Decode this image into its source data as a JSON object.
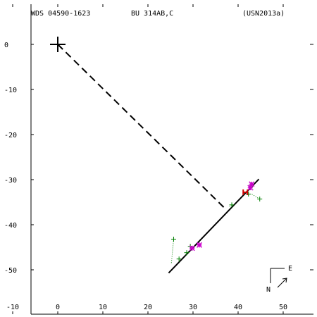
{
  "header": {
    "wds_id": "WDS 04590-1623",
    "discoverer": "BU  314AB,C",
    "reference": "(USN2013a)"
  },
  "compass": {
    "east_label": "E",
    "north_label": "N"
  },
  "colors": {
    "observation": "#008000",
    "highlight": "#cc00cc",
    "predicted": "#cc0000",
    "line": "#000000"
  },
  "chart_data": {
    "type": "scatter",
    "title": "",
    "xlabel": "",
    "ylabel": "",
    "xlim": [
      -10,
      55
    ],
    "ylim": [
      -55,
      10
    ],
    "x_ticks": [
      -10,
      0,
      10,
      20,
      30,
      40,
      50
    ],
    "y_ticks": [
      0,
      -10,
      -20,
      -30,
      -40,
      -50
    ],
    "grid": false,
    "primary": {
      "x": 0,
      "y": 0
    },
    "orbit_line": {
      "from": [
        24.6,
        -50.7
      ],
      "to": [
        44.6,
        -29.9
      ]
    },
    "connector": {
      "from": [
        0,
        0
      ],
      "to": [
        37.3,
        -36.6
      ]
    },
    "observations": [
      {
        "x": 25.7,
        "y": -43.2
      },
      {
        "x": 26.9,
        "y": -47.6
      },
      {
        "x": 28.6,
        "y": -46.2
      },
      {
        "x": 29.4,
        "y": -44.8
      },
      {
        "x": 38.6,
        "y": -35.6
      },
      {
        "x": 42.3,
        "y": -33.2
      },
      {
        "x": 43.0,
        "y": -31.3
      },
      {
        "x": 44.8,
        "y": -34.3
      }
    ],
    "residual_lines": [
      {
        "from": [
          25.7,
          -43.2
        ],
        "to": [
          25.2,
          -48.6
        ]
      },
      {
        "from": [
          26.9,
          -47.6
        ],
        "to": [
          27.0,
          -48.4
        ]
      },
      {
        "from": [
          28.6,
          -46.2
        ],
        "to": [
          28.4,
          -46.8
        ]
      },
      {
        "from": [
          29.4,
          -44.8
        ],
        "to": [
          29.6,
          -45.4
        ]
      },
      {
        "from": [
          38.6,
          -35.6
        ],
        "to": [
          38.0,
          -36.1
        ]
      },
      {
        "from": [
          42.3,
          -33.2
        ],
        "to": [
          42.5,
          -33.5
        ]
      },
      {
        "from": [
          43.0,
          -31.3
        ],
        "to": [
          43.3,
          -32.3
        ]
      },
      {
        "from": [
          44.8,
          -34.3
        ],
        "to": [
          43.0,
          -33.2
        ]
      }
    ],
    "highlighted": [
      {
        "x": 29.8,
        "y": -45.2
      },
      {
        "x": 31.4,
        "y": -44.5
      },
      {
        "x": 42.7,
        "y": -31.8
      },
      {
        "x": 43.0,
        "y": -31.0
      }
    ],
    "predicted_marker": {
      "x": 41.6,
      "y": -32.8
    }
  }
}
